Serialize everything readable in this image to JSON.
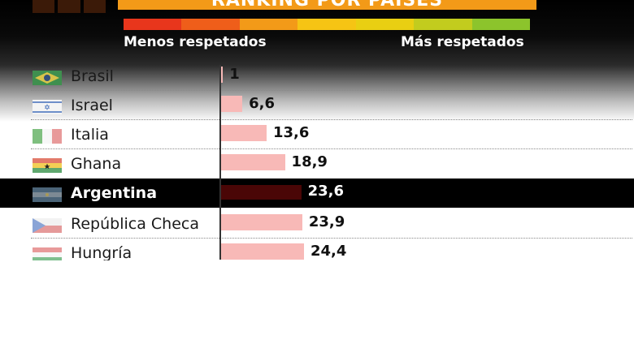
{
  "header": {
    "title": "RANKING POR PAÍSES",
    "scale_left_label": "Menos respetados",
    "scale_right_label": "Más respetados",
    "scale_colors": [
      "#e8361c",
      "#ef5e1a",
      "#f39a18",
      "#f6c414",
      "#e9cf12",
      "#c2cc1e",
      "#8cc42c"
    ]
  },
  "chart_data": {
    "type": "bar",
    "orientation": "horizontal",
    "categories": [
      "Brasil",
      "Israel",
      "Italia",
      "Ghana",
      "Argentina",
      "República Checa",
      "Hungría"
    ],
    "values": [
      1,
      6.6,
      13.6,
      18.9,
      23.6,
      23.9,
      24.4
    ],
    "value_labels": [
      "1",
      "6,6",
      "13,6",
      "18,9",
      "23,6",
      "23,9",
      "24,4"
    ],
    "highlighted_category": "Argentina",
    "flag_icons": [
      "flag-brazil-icon",
      "flag-israel-icon",
      "flag-italy-icon",
      "flag-ghana-icon",
      "flag-argentina-icon",
      "flag-czech-republic-icon",
      "flag-hungary-icon"
    ],
    "bar_color": "#f8b9b7",
    "highlight_bar_color": "#4a0606",
    "highlight_row_color": "#000000",
    "title": "RANKING POR PAÍSES"
  }
}
